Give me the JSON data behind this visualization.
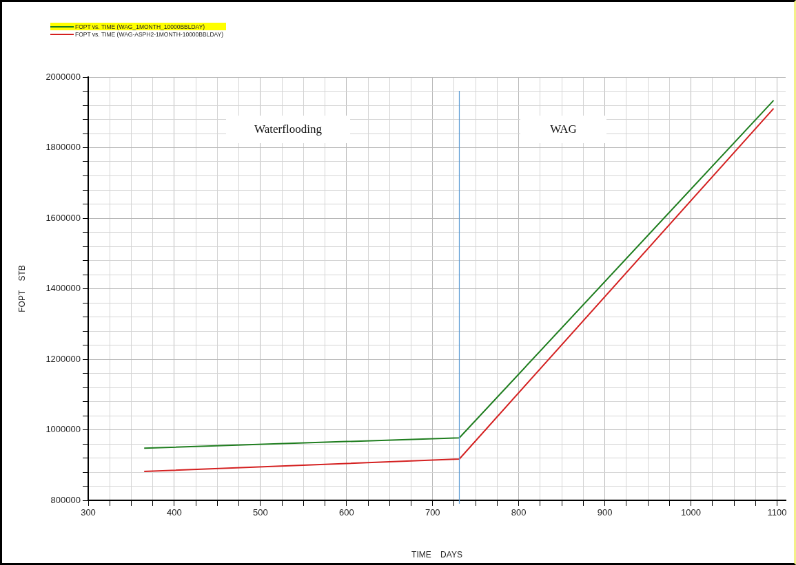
{
  "chart_data": {
    "type": "line",
    "xlabel": "TIME    DAYS",
    "ylabel": "FOPT    STB",
    "series": [
      {
        "name": "FOPT vs. TIME (WAG_1MONTH_10000BBLDAY)",
        "color": "#1e7d1e",
        "x": [
          365,
          731,
          1096
        ],
        "values": [
          948000,
          977000,
          1934000
        ]
      },
      {
        "name": "FOPT  vs.  TIME (WAG-ASPH2-1MONTH-10000BBLDAY)",
        "color": "#d42020",
        "x": [
          365,
          731,
          1096
        ],
        "values": [
          882000,
          917000,
          1911000
        ]
      }
    ],
    "xlim": [
      300,
      1110
    ],
    "xticks": [
      300,
      {
        "value": 325,
        "label": null
      },
      {
        "value": 350,
        "label": null
      },
      {
        "value": 375,
        "label": null
      },
      400,
      {
        "value": 425,
        "label": null
      },
      {
        "value": 450,
        "label": null
      },
      {
        "value": 475,
        "label": null
      },
      500,
      {
        "value": 525,
        "label": null
      },
      {
        "value": 550,
        "label": null
      },
      {
        "value": 575,
        "label": null
      },
      600,
      {
        "value": 625,
        "label": null
      },
      {
        "value": 650,
        "label": null
      },
      {
        "value": 675,
        "label": null
      },
      700,
      {
        "value": 725,
        "label": null
      },
      {
        "value": 750,
        "label": null
      },
      {
        "value": 775,
        "label": null
      },
      800,
      {
        "value": 825,
        "label": null
      },
      {
        "value": 850,
        "label": null
      },
      {
        "value": 875,
        "label": null
      },
      900,
      {
        "value": 925,
        "label": null
      },
      {
        "value": 950,
        "label": null
      },
      {
        "value": 975,
        "label": null
      },
      1000,
      {
        "value": 1025,
        "label": null
      },
      {
        "value": 1050,
        "label": null
      },
      {
        "value": 1075,
        "label": null
      },
      1100
    ],
    "ylim": [
      800000,
      2000000
    ],
    "yticks": [
      800000,
      {
        "value": 840000,
        "label": null
      },
      {
        "value": 880000,
        "label": null
      },
      {
        "value": 920000,
        "label": null
      },
      {
        "value": 960000,
        "label": null
      },
      1000000,
      {
        "value": 1040000,
        "label": null
      },
      {
        "value": 1080000,
        "label": null
      },
      {
        "value": 1120000,
        "label": null
      },
      {
        "value": 1160000,
        "label": null
      },
      1200000,
      {
        "value": 1240000,
        "label": null
      },
      {
        "value": 1280000,
        "label": null
      },
      {
        "value": 1320000,
        "label": null
      },
      {
        "value": 1360000,
        "label": null
      },
      1400000,
      {
        "value": 1440000,
        "label": null
      },
      {
        "value": 1480000,
        "label": null
      },
      {
        "value": 1520000,
        "label": null
      },
      {
        "value": 1560000,
        "label": null
      },
      1600000,
      {
        "value": 1640000,
        "label": null
      },
      {
        "value": 1680000,
        "label": null
      },
      {
        "value": 1720000,
        "label": null
      },
      {
        "value": 1760000,
        "label": null
      },
      1800000,
      {
        "value": 1840000,
        "label": null
      },
      {
        "value": 1880000,
        "label": null
      },
      {
        "value": 1920000,
        "label": null
      },
      {
        "value": 1960000,
        "label": null
      },
      2000000
    ],
    "grid": true,
    "legend": "top left",
    "marker": "none",
    "line_style": "solid",
    "ref_lines": [
      {
        "axis": "x",
        "value": 731,
        "color": "#5b9bd5"
      }
    ],
    "annotations": [
      "Waterflooding",
      "WAG"
    ]
  }
}
